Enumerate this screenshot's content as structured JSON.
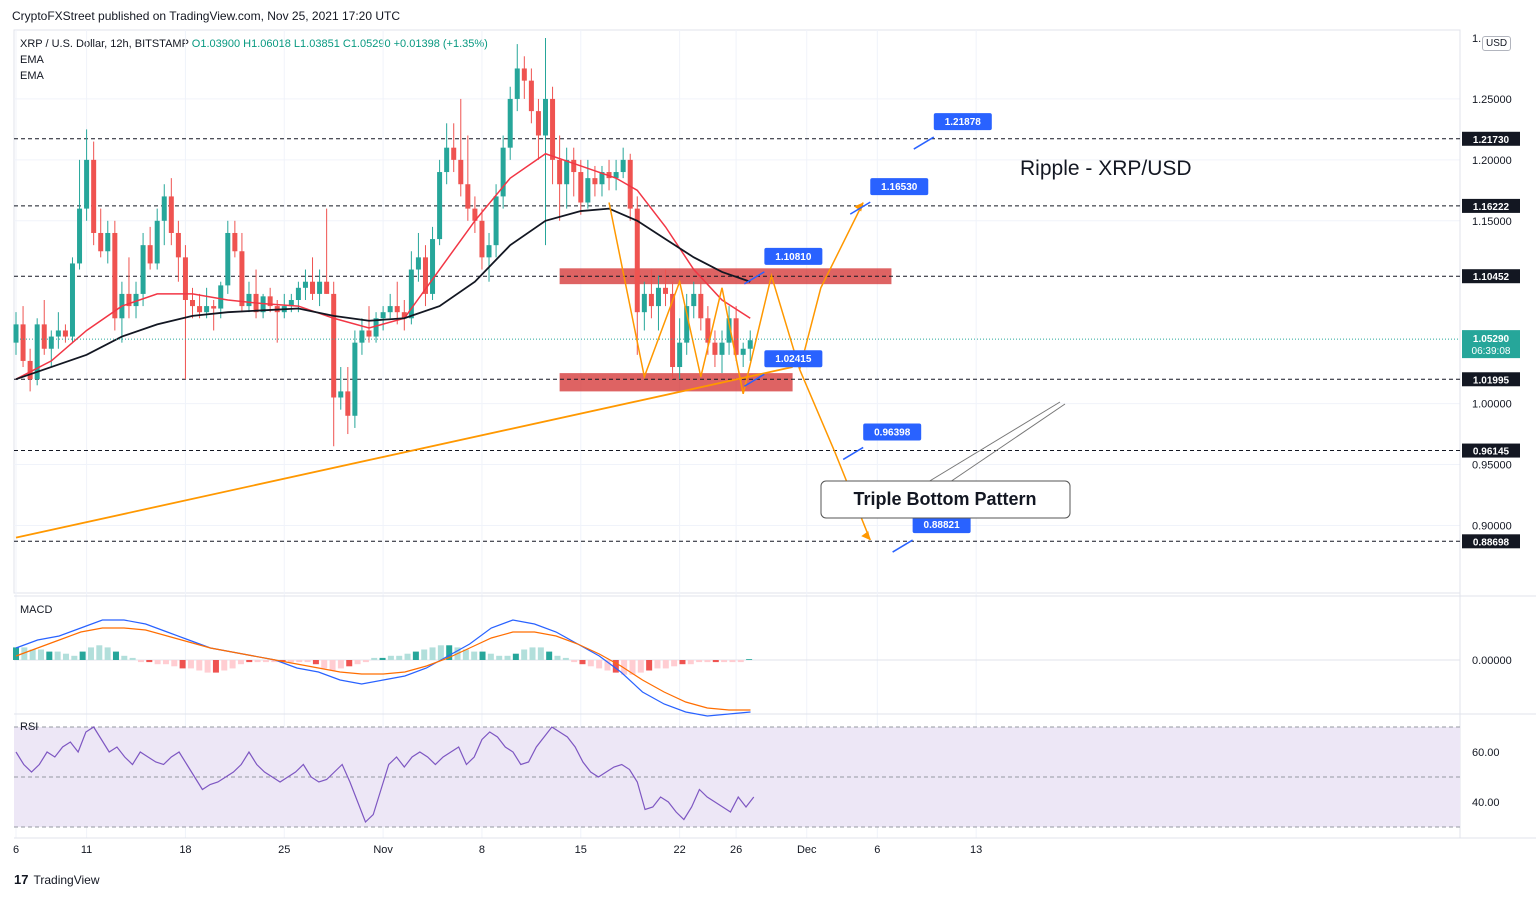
{
  "header": {
    "published": "CryptoFXStreet published on TradingView.com, Nov 25, 2021 17:20 UTC",
    "symbol": "XRP / U.S. Dollar, 12h, BITSTAMP",
    "ohlc": "O1.03900 H1.06018 L1.03851 C1.05290 +0.01398 (+1.35%)",
    "ema1": "EMA",
    "ema2": "EMA",
    "currency": "USD"
  },
  "branding": {
    "logo": "17",
    "name": "TradingView"
  },
  "colors": {
    "bull": "#26a69a",
    "bear": "#ef5350",
    "ema_fast": "#f23645",
    "ema_slow": "#131722",
    "pattern": "#ff9800",
    "tag": "#2962ff",
    "zone": "#d32f2f",
    "rsi_line": "#7e57c2",
    "rsi_bg": "#ede7f6"
  },
  "chart_data": {
    "type": "candlestick",
    "title": "Ripple - XRP/USD",
    "annotation": "Triple Bottom Pattern",
    "price_range": [
      0.87,
      1.3
    ],
    "y_ticks": [
      "1.25000",
      "1.20000",
      "1.15000",
      "1.00000",
      "0.95000",
      "0.90000"
    ],
    "y_tick_values": [
      1.25,
      1.2,
      1.15,
      1.0,
      0.95,
      0.9
    ],
    "top_partial_label": "1.",
    "x_ticks": [
      {
        "label": "6",
        "idx": 0
      },
      {
        "label": "11",
        "idx": 10
      },
      {
        "label": "18",
        "idx": 24
      },
      {
        "label": "25",
        "idx": 38
      },
      {
        "label": "Nov",
        "idx": 52
      },
      {
        "label": "8",
        "idx": 66
      },
      {
        "label": "15",
        "idx": 80
      },
      {
        "label": "22",
        "idx": 94
      },
      {
        "label": "26",
        "idx": 102
      },
      {
        "label": "Dec",
        "idx": 112
      },
      {
        "label": "6",
        "idx": 122
      },
      {
        "label": "13",
        "idx": 136
      }
    ],
    "last_price": "1.05290",
    "countdown": "06:39:08",
    "levels": [
      {
        "value": 1.2173,
        "label": "1.21730"
      },
      {
        "value": 1.16222,
        "label": "1.16222"
      },
      {
        "value": 1.10452,
        "label": "1.10452"
      },
      {
        "value": 1.01995,
        "label": "1.01995"
      },
      {
        "value": 0.96145,
        "label": "0.96145"
      },
      {
        "value": 0.88698,
        "label": "0.88698"
      }
    ],
    "callouts": [
      {
        "label": "1.21878",
        "value": 1.2187,
        "idx": 130
      },
      {
        "label": "1.16530",
        "value": 1.1653,
        "idx": 121
      },
      {
        "label": "1.10810",
        "value": 1.1081,
        "idx": 106
      },
      {
        "label": "1.02415",
        "value": 1.0241,
        "idx": 106
      },
      {
        "label": "0.96398",
        "value": 0.964,
        "idx": 120
      },
      {
        "label": "0.88821",
        "value": 0.888,
        "idx": 127
      }
    ],
    "zones": [
      {
        "from": 1.098,
        "to": 1.111,
        "start_idx": 77,
        "end_idx": 124
      },
      {
        "from": 1.01,
        "to": 1.025,
        "start_idx": 77,
        "end_idx": 110
      }
    ],
    "candles": [
      [
        1.05,
        1.075,
        1.04,
        1.065
      ],
      [
        1.065,
        1.08,
        1.03,
        1.035
      ],
      [
        1.035,
        1.045,
        1.01,
        1.02
      ],
      [
        1.02,
        1.07,
        1.015,
        1.065
      ],
      [
        1.065,
        1.085,
        1.04,
        1.045
      ],
      [
        1.045,
        1.06,
        1.03,
        1.055
      ],
      [
        1.055,
        1.075,
        1.045,
        1.06
      ],
      [
        1.06,
        1.065,
        1.05,
        1.055
      ],
      [
        1.055,
        1.12,
        1.05,
        1.115
      ],
      [
        1.115,
        1.2,
        1.11,
        1.16
      ],
      [
        1.16,
        1.225,
        1.15,
        1.2
      ],
      [
        1.2,
        1.215,
        1.13,
        1.14
      ],
      [
        1.14,
        1.16,
        1.12,
        1.125
      ],
      [
        1.125,
        1.15,
        1.115,
        1.14
      ],
      [
        1.14,
        1.15,
        1.06,
        1.07
      ],
      [
        1.07,
        1.1,
        1.05,
        1.09
      ],
      [
        1.09,
        1.12,
        1.07,
        1.08
      ],
      [
        1.08,
        1.1,
        1.07,
        1.09
      ],
      [
        1.09,
        1.14,
        1.08,
        1.13
      ],
      [
        1.13,
        1.145,
        1.11,
        1.115
      ],
      [
        1.115,
        1.16,
        1.11,
        1.15
      ],
      [
        1.15,
        1.18,
        1.13,
        1.17
      ],
      [
        1.17,
        1.185,
        1.13,
        1.14
      ],
      [
        1.14,
        1.15,
        1.1,
        1.12
      ],
      [
        1.12,
        1.13,
        1.02,
        1.085
      ],
      [
        1.085,
        1.095,
        1.07,
        1.08
      ],
      [
        1.08,
        1.09,
        1.07,
        1.075
      ],
      [
        1.075,
        1.095,
        1.07,
        1.08
      ],
      [
        1.08,
        1.085,
        1.06,
        1.078
      ],
      [
        1.078,
        1.1,
        1.07,
        1.097
      ],
      [
        1.097,
        1.15,
        1.09,
        1.14
      ],
      [
        1.14,
        1.15,
        1.12,
        1.125
      ],
      [
        1.125,
        1.14,
        1.075,
        1.08
      ],
      [
        1.08,
        1.1,
        1.075,
        1.09
      ],
      [
        1.09,
        1.11,
        1.07,
        1.075
      ],
      [
        1.075,
        1.09,
        1.07,
        1.088
      ],
      [
        1.088,
        1.095,
        1.075,
        1.08
      ],
      [
        1.08,
        1.085,
        1.05,
        1.075
      ],
      [
        1.075,
        1.09,
        1.07,
        1.08
      ],
      [
        1.08,
        1.09,
        1.075,
        1.085
      ],
      [
        1.085,
        1.1,
        1.075,
        1.095
      ],
      [
        1.095,
        1.11,
        1.085,
        1.1
      ],
      [
        1.1,
        1.12,
        1.085,
        1.09
      ],
      [
        1.09,
        1.11,
        1.08,
        1.1
      ],
      [
        1.1,
        1.16,
        1.09,
        1.09
      ],
      [
        1.09,
        1.1,
        0.965,
        1.005
      ],
      [
        1.005,
        1.03,
        0.995,
        1.01
      ],
      [
        1.01,
        1.03,
        0.975,
        0.99
      ],
      [
        0.99,
        1.06,
        0.98,
        1.05
      ],
      [
        1.05,
        1.07,
        1.04,
        1.06
      ],
      [
        1.06,
        1.08,
        1.05,
        1.055
      ],
      [
        1.055,
        1.075,
        1.05,
        1.07
      ],
      [
        1.07,
        1.08,
        1.06,
        1.075
      ],
      [
        1.075,
        1.09,
        1.07,
        1.08
      ],
      [
        1.08,
        1.1,
        1.065,
        1.075
      ],
      [
        1.075,
        1.085,
        1.06,
        1.07
      ],
      [
        1.07,
        1.125,
        1.065,
        1.11
      ],
      [
        1.11,
        1.14,
        1.1,
        1.12
      ],
      [
        1.12,
        1.13,
        1.08,
        1.09
      ],
      [
        1.09,
        1.145,
        1.085,
        1.135
      ],
      [
        1.135,
        1.2,
        1.13,
        1.19
      ],
      [
        1.19,
        1.23,
        1.18,
        1.21
      ],
      [
        1.21,
        1.23,
        1.19,
        1.2
      ],
      [
        1.2,
        1.25,
        1.17,
        1.18
      ],
      [
        1.18,
        1.22,
        1.15,
        1.16
      ],
      [
        1.16,
        1.17,
        1.14,
        1.15
      ],
      [
        1.15,
        1.16,
        1.11,
        1.12
      ],
      [
        1.12,
        1.14,
        1.1,
        1.13
      ],
      [
        1.13,
        1.18,
        1.12,
        1.17
      ],
      [
        1.17,
        1.22,
        1.16,
        1.21
      ],
      [
        1.21,
        1.26,
        1.2,
        1.25
      ],
      [
        1.25,
        1.295,
        1.24,
        1.275
      ],
      [
        1.275,
        1.285,
        1.25,
        1.265
      ],
      [
        1.265,
        1.275,
        1.23,
        1.24
      ],
      [
        1.24,
        1.25,
        1.2,
        1.22
      ],
      [
        1.22,
        1.3,
        1.13,
        1.25
      ],
      [
        1.25,
        1.26,
        1.18,
        1.2
      ],
      [
        1.2,
        1.22,
        1.15,
        1.18
      ],
      [
        1.18,
        1.21,
        1.16,
        1.2
      ],
      [
        1.2,
        1.21,
        1.17,
        1.19
      ],
      [
        1.19,
        1.2,
        1.155,
        1.165
      ],
      [
        1.165,
        1.2,
        1.16,
        1.185
      ],
      [
        1.185,
        1.195,
        1.17,
        1.18
      ],
      [
        1.18,
        1.195,
        1.17,
        1.19
      ],
      [
        1.19,
        1.2,
        1.175,
        1.185
      ],
      [
        1.185,
        1.2,
        1.175,
        1.19
      ],
      [
        1.19,
        1.21,
        1.185,
        1.2
      ],
      [
        1.2,
        1.205,
        1.15,
        1.16
      ],
      [
        1.16,
        1.17,
        1.04,
        1.075
      ],
      [
        1.075,
        1.1,
        1.06,
        1.09
      ],
      [
        1.09,
        1.11,
        1.07,
        1.08
      ],
      [
        1.08,
        1.105,
        1.06,
        1.095
      ],
      [
        1.095,
        1.11,
        1.08,
        1.09
      ],
      [
        1.09,
        1.1,
        1.02,
        1.03
      ],
      [
        1.03,
        1.07,
        1.02,
        1.05
      ],
      [
        1.05,
        1.09,
        1.04,
        1.08
      ],
      [
        1.08,
        1.1,
        1.07,
        1.09
      ],
      [
        1.09,
        1.1,
        1.06,
        1.07
      ],
      [
        1.07,
        1.08,
        1.04,
        1.05
      ],
      [
        1.05,
        1.06,
        1.03,
        1.04
      ],
      [
        1.04,
        1.06,
        1.025,
        1.05
      ],
      [
        1.05,
        1.08,
        1.04,
        1.07
      ],
      [
        1.07,
        1.08,
        1.035,
        1.04
      ],
      [
        1.04,
        1.05,
        1.03,
        1.045
      ],
      [
        1.045,
        1.06,
        1.035,
        1.052
      ]
    ],
    "ema_fast_points": [
      [
        0,
        1.02
      ],
      [
        5,
        1.035
      ],
      [
        10,
        1.06
      ],
      [
        15,
        1.08
      ],
      [
        20,
        1.09
      ],
      [
        25,
        1.09
      ],
      [
        30,
        1.085
      ],
      [
        35,
        1.082
      ],
      [
        40,
        1.08
      ],
      [
        45,
        1.07
      ],
      [
        50,
        1.062
      ],
      [
        55,
        1.07
      ],
      [
        60,
        1.11
      ],
      [
        65,
        1.15
      ],
      [
        70,
        1.185
      ],
      [
        75,
        1.205
      ],
      [
        80,
        1.195
      ],
      [
        85,
        1.185
      ],
      [
        88,
        1.175
      ],
      [
        92,
        1.145
      ],
      [
        96,
        1.11
      ],
      [
        100,
        1.085
      ],
      [
        104,
        1.07
      ]
    ],
    "ema_slow_points": [
      [
        0,
        1.02
      ],
      [
        10,
        1.04
      ],
      [
        15,
        1.055
      ],
      [
        20,
        1.065
      ],
      [
        25,
        1.072
      ],
      [
        30,
        1.075
      ],
      [
        40,
        1.078
      ],
      [
        45,
        1.072
      ],
      [
        50,
        1.068
      ],
      [
        55,
        1.07
      ],
      [
        60,
        1.08
      ],
      [
        65,
        1.1
      ],
      [
        70,
        1.13
      ],
      [
        75,
        1.15
      ],
      [
        80,
        1.158
      ],
      [
        84,
        1.16
      ],
      [
        88,
        1.15
      ],
      [
        92,
        1.135
      ],
      [
        96,
        1.12
      ],
      [
        100,
        1.108
      ],
      [
        104,
        1.1
      ]
    ],
    "trendline": [
      [
        0,
        0.89
      ],
      [
        110,
        1.03
      ]
    ],
    "pattern_path": [
      [
        84,
        1.165
      ],
      [
        89,
        1.022
      ],
      [
        94,
        1.1
      ],
      [
        97,
        1.022
      ],
      [
        100,
        1.095
      ],
      [
        103,
        1.008
      ],
      [
        107,
        1.105
      ],
      [
        111,
        1.028
      ]
    ],
    "bull_projection": [
      [
        111,
        1.028
      ],
      [
        114,
        1.095
      ],
      [
        120,
        1.165
      ]
    ],
    "bear_projection": [
      [
        111,
        1.028
      ],
      [
        116,
        0.96
      ],
      [
        121,
        0.888
      ]
    ],
    "macd": {
      "label": "MACD",
      "zero_label": "0.00000",
      "hist": [
        0.3,
        0.3,
        0.25,
        0.25,
        0.2,
        0.2,
        0.15,
        0.1,
        0.2,
        0.3,
        0.35,
        0.3,
        0.2,
        0.1,
        0.05,
        -0.05,
        -0.05,
        -0.1,
        -0.1,
        -0.15,
        -0.2,
        -0.2,
        -0.25,
        -0.3,
        -0.3,
        -0.25,
        -0.2,
        -0.1,
        -0.05,
        -0.05,
        -0.05,
        -0.05,
        -0.05,
        -0.05,
        -0.05,
        -0.05,
        -0.1,
        -0.2,
        -0.25,
        -0.2,
        -0.15,
        -0.1,
        -0.05,
        0.05,
        0.05,
        0.1,
        0.1,
        0.15,
        0.2,
        0.25,
        0.3,
        0.35,
        0.35,
        0.3,
        0.25,
        0.2,
        0.2,
        0.15,
        0.1,
        0.1,
        0.15,
        0.25,
        0.3,
        0.3,
        0.2,
        0.1,
        0.05,
        -0.05,
        -0.1,
        -0.15,
        -0.2,
        -0.25,
        -0.3,
        -0.35,
        -0.35,
        -0.3,
        -0.25,
        -0.2,
        -0.2,
        -0.15,
        -0.1,
        -0.1,
        -0.05,
        -0.05,
        -0.05,
        -0.05,
        -0.05,
        -0.05,
        0.02
      ],
      "macd_line": [
        0.3,
        0.5,
        0.6,
        0.8,
        1.0,
        1.0,
        0.9,
        0.7,
        0.5,
        0.3,
        0.2,
        0.1,
        0.0,
        -0.2,
        -0.3,
        -0.5,
        -0.6,
        -0.5,
        -0.4,
        -0.2,
        0.1,
        0.4,
        0.8,
        1.0,
        0.9,
        0.7,
        0.4,
        0.1,
        -0.3,
        -0.8,
        -1.1,
        -1.3,
        -1.4,
        -1.35,
        -1.3
      ],
      "signal_line": [
        0.1,
        0.3,
        0.5,
        0.7,
        0.8,
        0.8,
        0.75,
        0.6,
        0.45,
        0.3,
        0.2,
        0.1,
        0.0,
        -0.1,
        -0.2,
        -0.3,
        -0.35,
        -0.35,
        -0.3,
        -0.15,
        0.05,
        0.3,
        0.55,
        0.7,
        0.7,
        0.6,
        0.4,
        0.15,
        -0.15,
        -0.5,
        -0.8,
        -1.05,
        -1.2,
        -1.25,
        -1.25
      ]
    },
    "rsi": {
      "label": "RSI",
      "ticks": [
        "60.00",
        "40.00"
      ],
      "tick_values": [
        60,
        40
      ],
      "band": [
        30,
        70
      ],
      "values": [
        60,
        55,
        52,
        55,
        60,
        58,
        62,
        64,
        60,
        68,
        70,
        65,
        60,
        62,
        58,
        55,
        60,
        58,
        56,
        55,
        58,
        60,
        55,
        50,
        45,
        47,
        48,
        50,
        52,
        55,
        60,
        55,
        52,
        50,
        48,
        50,
        52,
        55,
        50,
        48,
        49,
        52,
        55,
        48,
        40,
        32,
        35,
        45,
        55,
        58,
        54,
        58,
        60,
        58,
        55,
        58,
        60,
        62,
        55,
        58,
        65,
        68,
        66,
        62,
        60,
        55,
        56,
        62,
        66,
        70,
        68,
        66,
        62,
        56,
        52,
        50,
        52,
        54,
        55,
        53,
        48,
        37,
        38,
        42,
        40,
        36,
        33,
        38,
        45,
        42,
        40,
        38,
        36,
        42,
        38,
        42
      ]
    }
  }
}
